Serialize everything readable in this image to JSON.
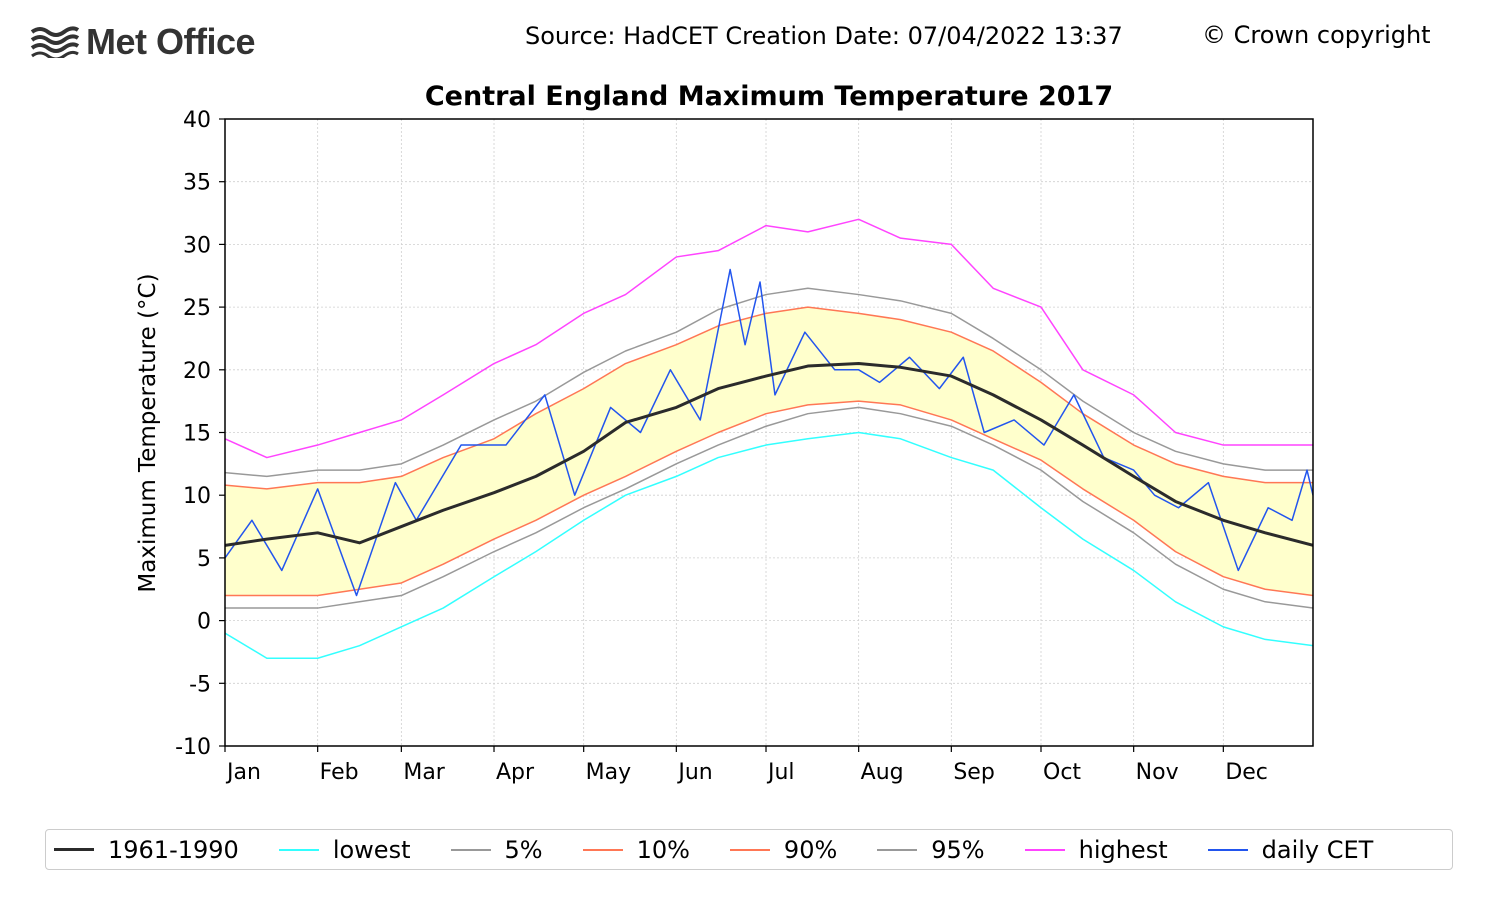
{
  "header": {
    "logo_text": "Met Office",
    "source": "Source: HadCET  Creation Date: 07/04/2022 13:37",
    "copyright": "© Crown copyright"
  },
  "chart_data": {
    "type": "line",
    "title": "Central England Maximum Temperature 2017",
    "xlabel": "",
    "ylabel": "Maximum Temperature (°C)",
    "ylim": [
      -10,
      40
    ],
    "xlim": [
      1,
      365
    ],
    "yticks": [
      -10,
      -5,
      0,
      5,
      10,
      15,
      20,
      25,
      30,
      35,
      40
    ],
    "ytick_labels": [
      "-10",
      "-5",
      "0",
      "5",
      "10",
      "15",
      "20",
      "25",
      "30",
      "35",
      "40"
    ],
    "grid": true,
    "months": [
      "Jan",
      "Feb",
      "Mar",
      "Apr",
      "May",
      "Jun",
      "Jul",
      "Aug",
      "Sep",
      "Oct",
      "Nov",
      "Dec"
    ],
    "month_start_days": [
      1,
      32,
      60,
      91,
      121,
      152,
      182,
      213,
      244,
      274,
      305,
      335
    ],
    "shaded_band": "between 10% and 90%",
    "series": [
      {
        "name": "1961-1990",
        "color": "#2b2b2b",
        "width": 3,
        "x": [
          1,
          15,
          32,
          46,
          60,
          74,
          91,
          105,
          121,
          135,
          152,
          166,
          182,
          196,
          213,
          227,
          244,
          258,
          274,
          288,
          305,
          319,
          335,
          349,
          365
        ],
        "y": [
          6.0,
          6.5,
          7.0,
          6.2,
          7.5,
          8.8,
          10.2,
          11.5,
          13.5,
          15.8,
          17.0,
          18.5,
          19.5,
          20.3,
          20.5,
          20.2,
          19.5,
          18.0,
          16.0,
          14.0,
          11.5,
          9.5,
          8.0,
          7.0,
          6.0
        ]
      },
      {
        "name": "lowest",
        "color": "#33ffff",
        "width": 1.5,
        "x": [
          1,
          15,
          32,
          46,
          60,
          74,
          91,
          105,
          121,
          135,
          152,
          166,
          182,
          196,
          213,
          227,
          244,
          258,
          274,
          288,
          305,
          319,
          335,
          349,
          365
        ],
        "y": [
          -1.0,
          -3.0,
          -3.0,
          -2.0,
          -0.5,
          1.0,
          3.5,
          5.5,
          8.0,
          10.0,
          11.5,
          13.0,
          14.0,
          14.5,
          15.0,
          14.5,
          13.0,
          12.0,
          9.0,
          6.5,
          4.0,
          1.5,
          -0.5,
          -1.5,
          -2.0
        ]
      },
      {
        "name": "5%",
        "color": "#999999",
        "width": 1.5,
        "x": [
          1,
          15,
          32,
          46,
          60,
          74,
          91,
          105,
          121,
          135,
          152,
          166,
          182,
          196,
          213,
          227,
          244,
          258,
          274,
          288,
          305,
          319,
          335,
          349,
          365
        ],
        "y": [
          1.0,
          1.0,
          1.0,
          1.5,
          2.0,
          3.5,
          5.5,
          7.0,
          9.0,
          10.5,
          12.5,
          14.0,
          15.5,
          16.5,
          17.0,
          16.5,
          15.5,
          14.0,
          12.0,
          9.5,
          7.0,
          4.5,
          2.5,
          1.5,
          1.0
        ]
      },
      {
        "name": "10%",
        "color": "#ff7755",
        "width": 1.5,
        "x": [
          1,
          15,
          32,
          46,
          60,
          74,
          91,
          105,
          121,
          135,
          152,
          166,
          182,
          196,
          213,
          227,
          244,
          258,
          274,
          288,
          305,
          319,
          335,
          349,
          365
        ],
        "y": [
          2.0,
          2.0,
          2.0,
          2.5,
          3.0,
          4.5,
          6.5,
          8.0,
          10.0,
          11.5,
          13.5,
          15.0,
          16.5,
          17.2,
          17.5,
          17.2,
          16.0,
          14.5,
          12.8,
          10.5,
          8.0,
          5.5,
          3.5,
          2.5,
          2.0
        ]
      },
      {
        "name": "90%",
        "color": "#ff7755",
        "width": 1.5,
        "x": [
          1,
          15,
          32,
          46,
          60,
          74,
          91,
          105,
          121,
          135,
          152,
          166,
          182,
          196,
          213,
          227,
          244,
          258,
          274,
          288,
          305,
          319,
          335,
          349,
          365
        ],
        "y": [
          10.8,
          10.5,
          11.0,
          11.0,
          11.5,
          13.0,
          14.5,
          16.5,
          18.5,
          20.5,
          22.0,
          23.5,
          24.5,
          25.0,
          24.5,
          24.0,
          23.0,
          21.5,
          19.0,
          16.5,
          14.0,
          12.5,
          11.5,
          11.0,
          11.0
        ]
      },
      {
        "name": "95%",
        "color": "#999999",
        "width": 1.5,
        "x": [
          1,
          15,
          32,
          46,
          60,
          74,
          91,
          105,
          121,
          135,
          152,
          166,
          182,
          196,
          213,
          227,
          244,
          258,
          274,
          288,
          305,
          319,
          335,
          349,
          365
        ],
        "y": [
          11.8,
          11.5,
          12.0,
          12.0,
          12.5,
          14.0,
          16.0,
          17.5,
          19.8,
          21.5,
          23.0,
          24.8,
          26.0,
          26.5,
          26.0,
          25.5,
          24.5,
          22.5,
          20.0,
          17.5,
          15.0,
          13.5,
          12.5,
          12.0,
          12.0
        ]
      },
      {
        "name": "highest",
        "color": "#ff44ff",
        "width": 1.5,
        "x": [
          1,
          15,
          32,
          46,
          60,
          74,
          91,
          105,
          121,
          135,
          152,
          166,
          182,
          196,
          213,
          227,
          244,
          258,
          274,
          288,
          305,
          319,
          335,
          349,
          365
        ],
        "y": [
          14.5,
          13.0,
          14.0,
          15.0,
          16.0,
          18.0,
          20.5,
          22.0,
          24.5,
          26.0,
          29.0,
          29.5,
          31.5,
          31.0,
          32.0,
          30.5,
          30.0,
          26.5,
          25.0,
          20.0,
          18.0,
          15.0,
          14.0,
          14.0,
          14.0
        ]
      },
      {
        "name": "daily CET",
        "color": "#2255ee",
        "width": 1.5,
        "x": [
          1,
          10,
          20,
          32,
          45,
          58,
          65,
          80,
          95,
          108,
          118,
          130,
          140,
          150,
          160,
          170,
          175,
          180,
          185,
          195,
          205,
          213,
          220,
          230,
          240,
          248,
          255,
          265,
          275,
          285,
          295,
          305,
          312,
          320,
          330,
          340,
          350,
          358,
          363,
          365
        ],
        "y": [
          5.0,
          8.0,
          4.0,
          10.5,
          2.0,
          11.0,
          8.0,
          14.0,
          14.0,
          18.0,
          10.0,
          17.0,
          15.0,
          20.0,
          16.0,
          28.0,
          22.0,
          27.0,
          18.0,
          23.0,
          20.0,
          20.0,
          19.0,
          21.0,
          18.5,
          21.0,
          15.0,
          16.0,
          14.0,
          18.0,
          13.0,
          12.0,
          10.0,
          9.0,
          11.0,
          4.0,
          9.0,
          8.0,
          12.0,
          10.0
        ]
      }
    ]
  },
  "legend": [
    "1961-1990",
    "lowest",
    "5%",
    "10%",
    "90%",
    "95%",
    "highest",
    "daily CET"
  ]
}
